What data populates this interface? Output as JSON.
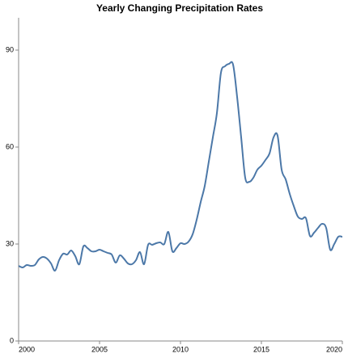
{
  "chart_data": {
    "type": "line",
    "title": "Yearly Changing Precipitation Rates",
    "x": [
      2000,
      2000.25,
      2000.5,
      2000.75,
      2001,
      2001.25,
      2001.5,
      2001.75,
      2002,
      2002.25,
      2002.5,
      2002.75,
      2003,
      2003.25,
      2003.5,
      2003.75,
      2004,
      2004.25,
      2004.5,
      2004.75,
      2005,
      2005.25,
      2005.5,
      2005.75,
      2006,
      2006.25,
      2006.5,
      2006.75,
      2007,
      2007.25,
      2007.5,
      2007.75,
      2008,
      2008.25,
      2008.5,
      2008.75,
      2009,
      2009.25,
      2009.5,
      2009.75,
      2010,
      2010.25,
      2010.5,
      2010.75,
      2011,
      2011.25,
      2011.5,
      2011.75,
      2012,
      2012.25,
      2012.5,
      2012.75,
      2013,
      2013.25,
      2013.5,
      2013.75,
      2014,
      2014.25,
      2014.5,
      2014.75,
      2015,
      2015.25,
      2015.5,
      2015.75,
      2016,
      2016.25,
      2016.5,
      2016.75,
      2017,
      2017.25,
      2017.5,
      2017.75,
      2018,
      2018.25,
      2018.5,
      2018.75,
      2019,
      2019.25,
      2019.5,
      2019.75,
      2020
    ],
    "series": [
      {
        "color": "#4c78a8",
        "values": [
          23.25,
          22.75,
          23.5,
          23.25,
          23.5,
          25.25,
          26,
          25.5,
          24,
          21.75,
          25,
          27,
          26.75,
          28,
          26.25,
          23.75,
          29.25,
          28.75,
          27.75,
          27.75,
          28.25,
          27.75,
          27.25,
          26.75,
          24.25,
          26.5,
          25.5,
          24,
          23.75,
          25,
          27.5,
          23.75,
          29.75,
          29.75,
          30.25,
          30.5,
          30,
          33.75,
          27.75,
          28.75,
          30.25,
          30,
          30.75,
          33,
          37.5,
          43,
          48,
          55.5,
          63,
          70.5,
          83,
          85,
          85.75,
          85.5,
          75.5,
          63,
          50.5,
          49.25,
          50.5,
          53,
          54.25,
          56,
          58,
          63,
          63.5,
          53,
          50,
          45.5,
          41.75,
          38.5,
          37.75,
          38,
          32.5,
          33.5,
          35,
          36.25,
          35,
          28.25,
          30,
          32.25,
          32.25
        ]
      }
    ],
    "xlim": [
      2000,
      2020
    ],
    "xticks": [
      2000,
      2005,
      2010,
      2015,
      2020
    ],
    "ylim": [
      0,
      100
    ],
    "yticks": [
      0,
      30,
      60,
      90
    ]
  }
}
